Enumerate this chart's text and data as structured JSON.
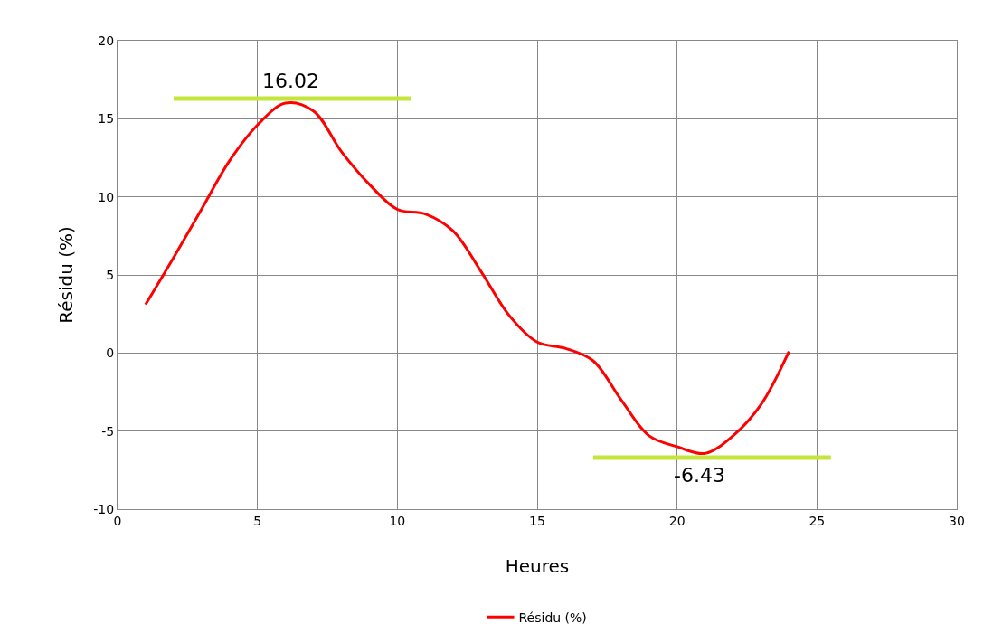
{
  "chart_data": {
    "type": "line",
    "xlabel": "Heures",
    "ylabel": "Résidu (%)",
    "x": [
      1,
      2,
      3,
      4,
      5,
      6,
      7,
      8,
      9,
      10,
      11,
      12,
      13,
      14,
      15,
      16,
      17,
      18,
      19,
      20,
      21,
      22,
      23,
      24
    ],
    "series": [
      {
        "name": "Résidu (%)",
        "color": "#ff0000",
        "values": [
          3.1,
          6.1,
          9.2,
          12.3,
          14.6,
          16.0,
          15.5,
          12.9,
          10.8,
          9.2,
          8.9,
          7.8,
          5.2,
          2.4,
          0.7,
          0.3,
          -0.5,
          -3.0,
          -5.3,
          -6.0,
          -6.43,
          -5.3,
          -3.3,
          0.1
        ]
      },
      {
        "color": "#c4e63c",
        "x": [
          2,
          10.5
        ],
        "values": [
          16.3,
          16.3
        ]
      },
      {
        "color": "#c4e63c",
        "x": [
          17,
          25.5
        ],
        "values": [
          -6.7,
          -6.7
        ]
      }
    ],
    "annotations": [
      {
        "text": "16.02",
        "x": 6.2,
        "y": 16.02
      },
      {
        "text": "-6.43",
        "x": 20.8,
        "y": -6.43
      }
    ],
    "xlim": [
      0,
      30
    ],
    "xticks": [
      0,
      5,
      10,
      15,
      20,
      25,
      30
    ],
    "ylim": [
      -10,
      20
    ],
    "yticks": [
      -10,
      -5,
      0,
      5,
      10,
      15,
      20
    ],
    "grid": true,
    "legend": "bottom",
    "marker": "none",
    "line_style": "solid"
  }
}
